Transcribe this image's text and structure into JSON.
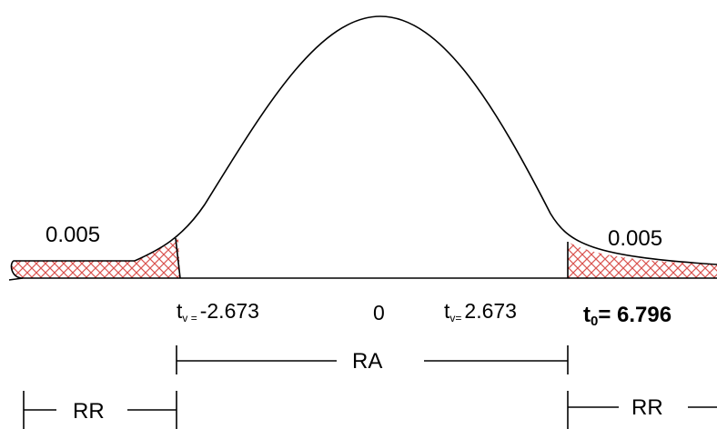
{
  "labels": {
    "left_tail_area": "0.005",
    "right_tail_area": "0.005",
    "left_critical": {
      "sub": "v =",
      "value": "-2.673"
    },
    "center": "0",
    "right_critical": {
      "sub": "v=",
      "value": "2.673"
    },
    "observed": {
      "sub": "0",
      "value": "= 6.796"
    },
    "acceptance_region": "RA",
    "rejection_left": "RR",
    "rejection_right": "RR"
  },
  "colors": {
    "hatch": "#d9534f",
    "line": "#000000"
  }
}
